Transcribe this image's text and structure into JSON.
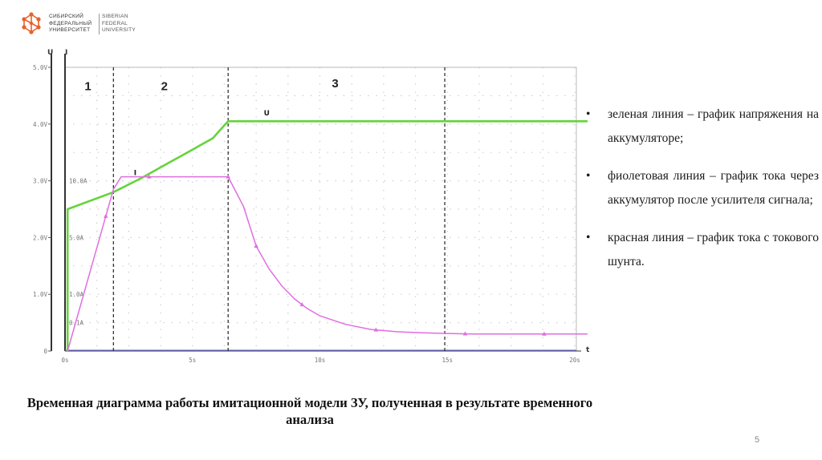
{
  "logo": {
    "ru_lines": [
      "СИБИРСКИЙ",
      "ФЕДЕРАЛЬНЫЙ",
      "УНИВЕРСИТЕТ"
    ],
    "en_lines": [
      "SIBERIAN",
      "FEDERAL",
      "UNIVERSITY"
    ],
    "brand_color": "#e8612c"
  },
  "chart_data": {
    "type": "line",
    "x_axis_label": "t",
    "y_axis_labels": [
      "U",
      "I"
    ],
    "xlim": [
      0,
      20
    ],
    "ylim": [
      0,
      5
    ],
    "x_ticks": [
      {
        "value": 0,
        "label": "0s"
      },
      {
        "value": 5,
        "label": "5s"
      },
      {
        "value": 10,
        "label": "10s"
      },
      {
        "value": 15,
        "label": "15s"
      },
      {
        "value": 20,
        "label": "20s"
      }
    ],
    "y_ticks": [
      {
        "value": 0,
        "label": "0"
      },
      {
        "value": 1,
        "label": "1.0V"
      },
      {
        "value": 2,
        "label": "2.0V"
      },
      {
        "value": 3,
        "label": "3.0V"
      },
      {
        "value": 4,
        "label": "4.0V"
      },
      {
        "value": 5,
        "label": "5.0V"
      }
    ],
    "current_axis_labels": [
      {
        "at": 3.0,
        "label": "10.0A"
      },
      {
        "at": 2.0,
        "label": "5.0A"
      },
      {
        "at": 1.0,
        "label": "1.0A"
      },
      {
        "at": 0.5,
        "label": "0.1A"
      }
    ],
    "grid": true,
    "phase_lines_x": [
      1.9,
      6.4,
      14.9
    ],
    "phase_labels": [
      {
        "x": 0.9,
        "y": 4.6,
        "label": "1"
      },
      {
        "x": 3.9,
        "y": 4.6,
        "label": "2"
      },
      {
        "x": 10.6,
        "y": 4.65,
        "label": "3"
      }
    ],
    "series": [
      {
        "name": "U",
        "color": "#66d33d",
        "label_at": [
          7.8,
          4.15
        ],
        "x": [
          0.1,
          0.1,
          1.9,
          3.0,
          4.0,
          5.0,
          5.8,
          6.2,
          6.4,
          8,
          10,
          12,
          14,
          16,
          18,
          20.5
        ],
        "y": [
          0.0,
          2.5,
          2.8,
          3.05,
          3.3,
          3.55,
          3.75,
          3.95,
          4.05,
          4.05,
          4.05,
          4.05,
          4.05,
          4.05,
          4.05,
          4.05
        ]
      },
      {
        "name": "I",
        "color": "#e06ee0",
        "label_at": [
          2.7,
          3.1
        ],
        "marker_x": [
          1.6,
          3.3,
          6.4,
          7.5,
          9.3,
          12.2,
          15.7,
          18.8
        ],
        "x": [
          0.1,
          1.9,
          2.2,
          4.0,
          6.0,
          6.4,
          7.0,
          7.5,
          8.0,
          8.5,
          9.0,
          9.5,
          10.0,
          11.0,
          12.0,
          13.0,
          14.0,
          15.0,
          16.0,
          17.0,
          18.0,
          19.0,
          20.0,
          20.5
        ],
        "y": [
          0.0,
          2.85,
          3.07,
          3.07,
          3.07,
          3.07,
          2.55,
          1.85,
          1.45,
          1.15,
          0.92,
          0.75,
          0.62,
          0.47,
          0.38,
          0.34,
          0.32,
          0.31,
          0.3,
          0.3,
          0.3,
          0.3,
          0.3,
          0.3
        ]
      }
    ]
  },
  "bullets": [
    "зеленая линия – график напряжения на аккумуляторе;",
    "фиолетовая линия – график тока через аккумулятор после усилителя сигнала;",
    "красная линия – график тока с токового шунта."
  ],
  "bullet_char": "•",
  "caption": "Временная диаграмма работы имитационной модели ЗУ, полученная в результате временного анализа",
  "page_number": "5"
}
